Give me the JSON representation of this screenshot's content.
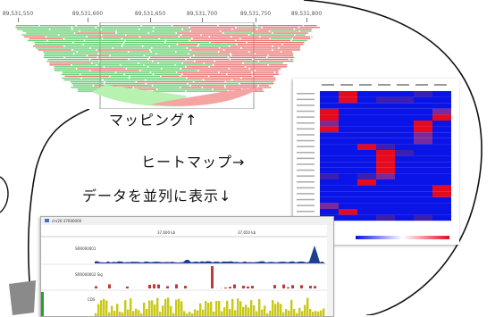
{
  "mapping": {
    "ticks": [
      "89,531,550",
      "89,531,600",
      "89,531,650",
      "89,531,700",
      "89,531,750",
      "89,531,800"
    ],
    "read_colors": {
      "forward": "#5fce6a",
      "reverse": "#e8706e",
      "coverage_fwd": "#b8f2b0",
      "coverage_rev": "#f5a4a4"
    }
  },
  "callouts": {
    "mapping": "マッピング↑",
    "heatmap": "ヒートマップ→",
    "parallel": "データを並列に表示↓"
  },
  "heatmap": {
    "colors": {
      "low": "#0a14e6",
      "high": "#e60a1e",
      "mid": "#7a2a9a"
    }
  },
  "browser": {
    "locus": "chr20:37600000",
    "ticks": [
      "37,600 kb",
      "37,650 kb"
    ],
    "tracks": [
      {
        "title": "SRR000001",
        "color": "#1f3f8f"
      },
      {
        "title": "SRR000002 Sig",
        "color": "#c03a3a"
      },
      {
        "title": "CDS",
        "color": "#c8c815"
      }
    ]
  }
}
